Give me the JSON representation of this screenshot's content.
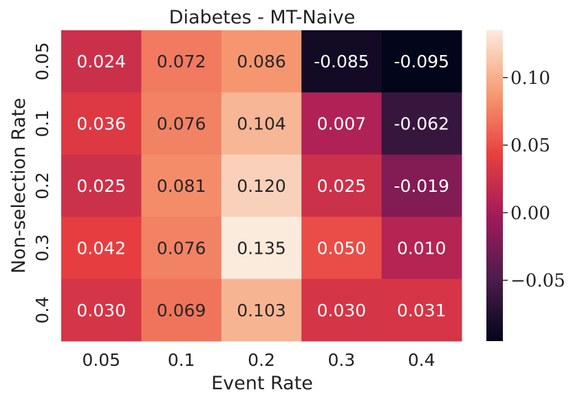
{
  "chart_data": {
    "type": "heatmap",
    "title": "Diabetes - MT-Naive",
    "xlabel": "Event Rate",
    "ylabel": "Non-selection Rate",
    "x_categories": [
      "0.05",
      "0.1",
      "0.2",
      "0.3",
      "0.4"
    ],
    "y_categories": [
      "0.05",
      "0.1",
      "0.2",
      "0.3",
      "0.4"
    ],
    "values": [
      [
        0.024,
        0.072,
        0.086,
        -0.085,
        -0.095
      ],
      [
        0.036,
        0.076,
        0.104,
        0.007,
        -0.062
      ],
      [
        0.025,
        0.081,
        0.12,
        0.025,
        -0.019
      ],
      [
        0.042,
        0.076,
        0.135,
        0.05,
        0.01
      ],
      [
        0.03,
        0.069,
        0.103,
        0.03,
        0.031
      ]
    ],
    "cell_labels": [
      [
        "0.024",
        "0.072",
        "0.086",
        "-0.085",
        "-0.095"
      ],
      [
        "0.036",
        "0.076",
        "0.104",
        "0.007",
        "-0.062"
      ],
      [
        "0.025",
        "0.081",
        "0.120",
        "0.025",
        "-0.019"
      ],
      [
        "0.042",
        "0.076",
        "0.135",
        "0.050",
        "0.010"
      ],
      [
        "0.030",
        "0.069",
        "0.103",
        "0.030",
        "0.031"
      ]
    ],
    "colorbar": {
      "range": [
        -0.095,
        0.135
      ],
      "ticks": [
        0.1,
        0.05,
        0.0,
        -0.05
      ],
      "tick_labels": [
        "0.10",
        "0.05",
        "0.00",
        "−0.05"
      ]
    },
    "colormap": "rocket",
    "colormap_stops": [
      "#03051a",
      "#4c1d4b",
      "#a11a5b",
      "#e83f3f",
      "#f69c73",
      "#faebdd"
    ]
  }
}
